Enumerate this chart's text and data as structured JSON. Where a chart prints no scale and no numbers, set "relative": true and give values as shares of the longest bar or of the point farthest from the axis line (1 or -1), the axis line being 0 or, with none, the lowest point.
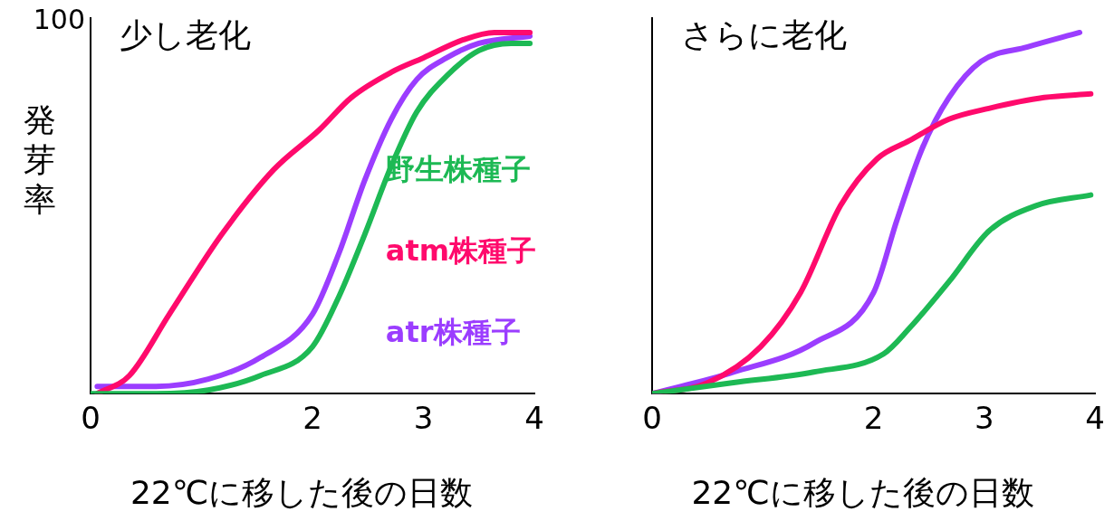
{
  "chart_data": [
    {
      "type": "line",
      "title": "少し老化",
      "xlabel": "22℃に移した後の日数",
      "ylabel": "発芽率",
      "annotations": [
        "100"
      ],
      "xlim": [
        0,
        4
      ],
      "xticks": [
        0,
        2,
        3,
        4
      ],
      "relative": true,
      "legend": "right",
      "marker": "none",
      "line_style": "solid",
      "series": [
        {
          "name": "野生株種子",
          "color": "#1db954",
          "x": [
            0,
            0.59,
            1.06,
            1.53,
            2,
            2.24,
            2.47,
            2.71,
            2.94,
            3.21,
            3.5,
            3.79,
            3.96
          ],
          "values": [
            0,
            0,
            0.01,
            0.05,
            0.13,
            0.27,
            0.44,
            0.63,
            0.78,
            0.88,
            0.95,
            0.97,
            0.97
          ]
        },
        {
          "name": "atm株種子",
          "color": "#ff0a6c",
          "x": [
            0.06,
            0.35,
            0.71,
            1.18,
            1.65,
            2.06,
            2.35,
            2.71,
            3,
            3.36,
            3.64,
            3.96
          ],
          "values": [
            0,
            0.05,
            0.22,
            0.44,
            0.62,
            0.73,
            0.82,
            0.89,
            0.93,
            0.98,
            1,
            1
          ]
        },
        {
          "name": "atr株種子",
          "color": "#9b3dff",
          "x": [
            0.06,
            0.59,
            1.06,
            1.53,
            2,
            2.24,
            2.47,
            2.71,
            2.94,
            3.21,
            3.5,
            3.96
          ],
          "values": [
            0.02,
            0.02,
            0.04,
            0.1,
            0.22,
            0.39,
            0.59,
            0.76,
            0.87,
            0.93,
            0.97,
            0.99
          ]
        }
      ]
    },
    {
      "type": "line",
      "title": "さらに老化",
      "xlabel": "22℃に移した後の日数",
      "xlim": [
        0,
        4
      ],
      "xticks": [
        0,
        2,
        3,
        4
      ],
      "relative": true,
      "marker": "none",
      "line_style": "solid",
      "series": [
        {
          "color": "#1db954",
          "x": [
            0,
            0.72,
            1.46,
            2.09,
            2.32,
            2.68,
            3.04,
            3.46,
            3.96
          ],
          "values": [
            0,
            0.03,
            0.06,
            0.11,
            0.18,
            0.31,
            0.45,
            0.52,
            0.55
          ]
        },
        {
          "color": "#ff0a6c",
          "x": [
            0,
            0.5,
            0.98,
            1.34,
            1.7,
            2.03,
            2.32,
            2.68,
            3.04,
            3.54,
            3.96
          ],
          "values": [
            0,
            0.03,
            0.13,
            0.28,
            0.52,
            0.65,
            0.7,
            0.76,
            0.79,
            0.82,
            0.83
          ]
        },
        {
          "color": "#9b3dff",
          "x": [
            0,
            0.74,
            1.46,
            2,
            2.21,
            2.44,
            2.68,
            2.97,
            3.39,
            3.86
          ],
          "values": [
            0,
            0.06,
            0.14,
            0.28,
            0.48,
            0.68,
            0.82,
            0.92,
            0.96,
            1
          ]
        }
      ]
    }
  ]
}
